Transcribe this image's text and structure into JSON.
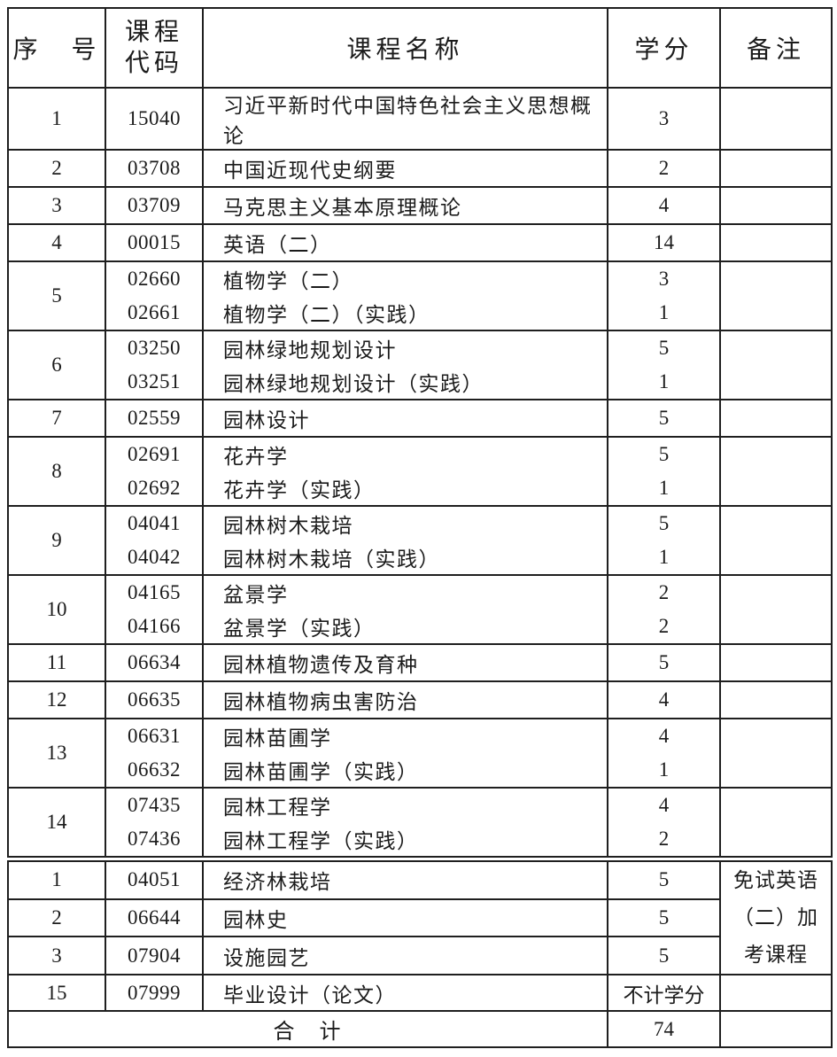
{
  "table": {
    "headers": {
      "no": "序　号",
      "code": "课程\n代码",
      "name": "课程名称",
      "credit": "学分",
      "remark": "备注"
    },
    "main_rows": [
      {
        "no": "1",
        "courses": [
          {
            "code": "15040",
            "name": "习近平新时代中国特色社会主义思想概论",
            "credit": "3"
          }
        ]
      },
      {
        "no": "2",
        "courses": [
          {
            "code": "03708",
            "name": "中国近现代史纲要",
            "credit": "2"
          }
        ]
      },
      {
        "no": "3",
        "courses": [
          {
            "code": "03709",
            "name": "马克思主义基本原理概论",
            "credit": "4"
          }
        ]
      },
      {
        "no": "4",
        "courses": [
          {
            "code": "00015",
            "name": "英语（二）",
            "credit": "14"
          }
        ]
      },
      {
        "no": "5",
        "courses": [
          {
            "code": "02660",
            "name": "植物学（二）",
            "credit": "3"
          },
          {
            "code": "02661",
            "name": "植物学（二）（实践）",
            "credit": "1"
          }
        ]
      },
      {
        "no": "6",
        "courses": [
          {
            "code": "03250",
            "name": "园林绿地规划设计",
            "credit": "5"
          },
          {
            "code": "03251",
            "name": "园林绿地规划设计（实践）",
            "credit": "1"
          }
        ]
      },
      {
        "no": "7",
        "courses": [
          {
            "code": "02559",
            "name": "园林设计",
            "credit": "5"
          }
        ]
      },
      {
        "no": "8",
        "courses": [
          {
            "code": "02691",
            "name": "花卉学",
            "credit": "5"
          },
          {
            "code": "02692",
            "name": "花卉学（实践）",
            "credit": "1"
          }
        ]
      },
      {
        "no": "9",
        "courses": [
          {
            "code": "04041",
            "name": "园林树木栽培",
            "credit": "5"
          },
          {
            "code": "04042",
            "name": "园林树木栽培（实践）",
            "credit": "1"
          }
        ]
      },
      {
        "no": "10",
        "courses": [
          {
            "code": "04165",
            "name": "盆景学",
            "credit": "2"
          },
          {
            "code": "04166",
            "name": "盆景学（实践）",
            "credit": "2"
          }
        ]
      },
      {
        "no": "11",
        "courses": [
          {
            "code": "06634",
            "name": "园林植物遗传及育种",
            "credit": "5"
          }
        ]
      },
      {
        "no": "12",
        "courses": [
          {
            "code": "06635",
            "name": "园林植物病虫害防治",
            "credit": "4"
          }
        ]
      },
      {
        "no": "13",
        "courses": [
          {
            "code": "06631",
            "name": "园林苗圃学",
            "credit": "4"
          },
          {
            "code": "06632",
            "name": "园林苗圃学（实践）",
            "credit": "1"
          }
        ]
      },
      {
        "no": "14",
        "courses": [
          {
            "code": "07435",
            "name": "园林工程学",
            "credit": "4"
          },
          {
            "code": "07436",
            "name": "园林工程学（实践）",
            "credit": "2"
          }
        ]
      }
    ],
    "extra_rows": [
      {
        "no": "1",
        "code": "04051",
        "name": "经济林栽培",
        "credit": "5"
      },
      {
        "no": "2",
        "code": "06644",
        "name": "园林史",
        "credit": "5"
      },
      {
        "no": "3",
        "code": "07904",
        "name": "设施园艺",
        "credit": "5"
      },
      {
        "no": "15",
        "code": "07999",
        "name": "毕业设计（论文）",
        "credit": "不计学分"
      }
    ],
    "extra_remark_lines": [
      "免试英语",
      "（二）加",
      "考课程"
    ],
    "total": {
      "label": "合　计",
      "credit": "74"
    }
  }
}
